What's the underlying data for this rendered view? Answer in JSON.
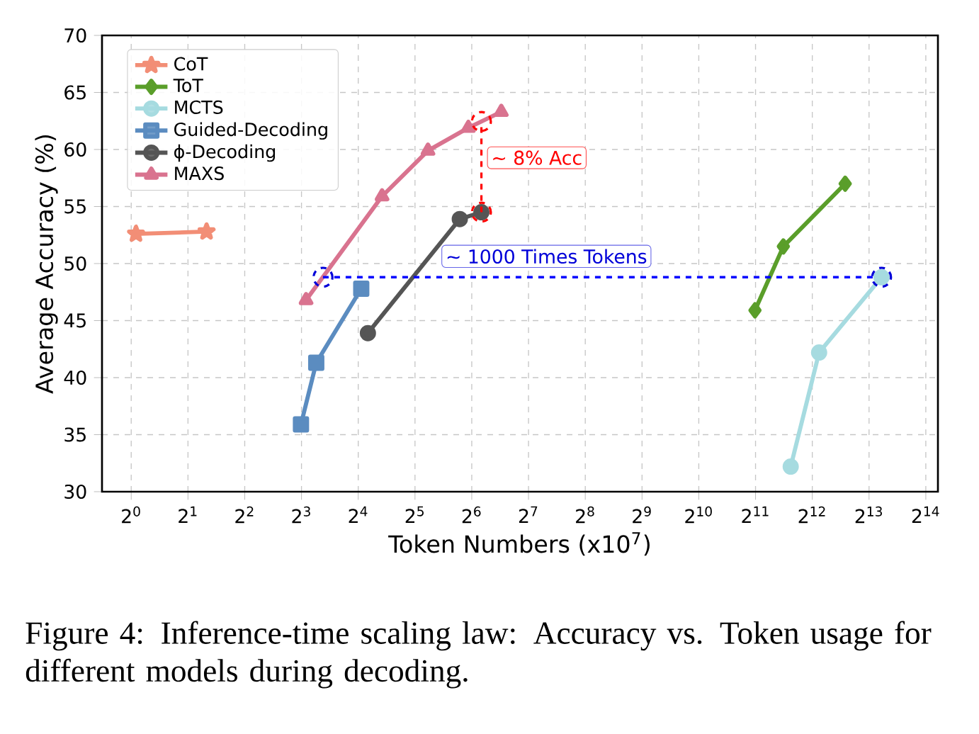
{
  "chart_data": {
    "type": "line",
    "xlabel": "Token Numbers (x10$^{7}$)",
    "ylabel": "Average Accuracy (%)",
    "log": "x",
    "xlim": [
      0.7,
      19000
    ],
    "ylim": [
      30,
      70
    ],
    "xticks": [
      {
        "value": 1,
        "label": "2$^{0}$"
      },
      {
        "value": 2,
        "label": "2$^{1}$"
      },
      {
        "value": 4,
        "label": "2$^{2}$"
      },
      {
        "value": 8,
        "label": "2$^{3}$"
      },
      {
        "value": 16,
        "label": "2$^{4}$"
      },
      {
        "value": 32,
        "label": "2$^{5}$"
      },
      {
        "value": 64,
        "label": "2$^{6}$"
      },
      {
        "value": 128,
        "label": "2$^{7}$"
      },
      {
        "value": 256,
        "label": "2$^{8}$"
      },
      {
        "value": 512,
        "label": "2$^{9}$"
      },
      {
        "value": 1024,
        "label": "2$^{10}$"
      },
      {
        "value": 2048,
        "label": "2$^{11}$"
      },
      {
        "value": 4096,
        "label": "2$^{12}$"
      },
      {
        "value": 8192,
        "label": "2$^{13}$"
      },
      {
        "value": 16384,
        "label": "2$^{14}$"
      }
    ],
    "yticks": [
      30,
      35,
      40,
      45,
      50,
      55,
      60,
      65,
      70
    ],
    "grid": true,
    "legend": "top left",
    "series": [
      {
        "name": "CoT",
        "color": "#f28e76",
        "marker": "star",
        "x": [
          1.06,
          2.51
        ],
        "values": [
          52.6,
          52.8
        ]
      },
      {
        "name": "ToT",
        "color": "#5a9e2a",
        "marker": "diamond",
        "x": [
          2034,
          2876,
          6122
        ],
        "values": [
          45.9,
          51.5,
          57.0
        ]
      },
      {
        "name": "MCTS",
        "color": "#a6dbe0",
        "marker": "circle",
        "x": [
          3147,
          4451,
          9540
        ],
        "values": [
          32.2,
          42.2,
          48.8
        ]
      },
      {
        "name": "Guided-Decoding",
        "color": "#5b8cc0",
        "marker": "square",
        "x": [
          7.95,
          9.58,
          16.6
        ],
        "values": [
          35.9,
          41.3,
          47.8
        ]
      },
      {
        "name": "ϕ-Decoding",
        "color": "#555555",
        "marker": "circle",
        "x": [
          18.0,
          55.3,
          72.0
        ],
        "values": [
          43.9,
          53.9,
          54.5
        ]
      },
      {
        "name": "MAXS",
        "color": "#d9738f",
        "marker": "triangle",
        "x": [
          8.46,
          21.4,
          37.5,
          61.4,
          91.8
        ],
        "values": [
          46.8,
          55.9,
          59.9,
          61.9,
          63.3
        ]
      },
      {
        "type": "line",
        "color": "#0000ff",
        "line_style": "dashed",
        "marker": "none",
        "x": [
          10.4,
          9540
        ],
        "values": [
          48.8,
          48.8
        ]
      }
    ],
    "annotations": [
      "~ 8% Acc",
      "~ 1000 Times Tokens",
      "Figure 4: Inference-time scaling law: Accuracy vs. Token usage for different models during decoding."
    ]
  }
}
